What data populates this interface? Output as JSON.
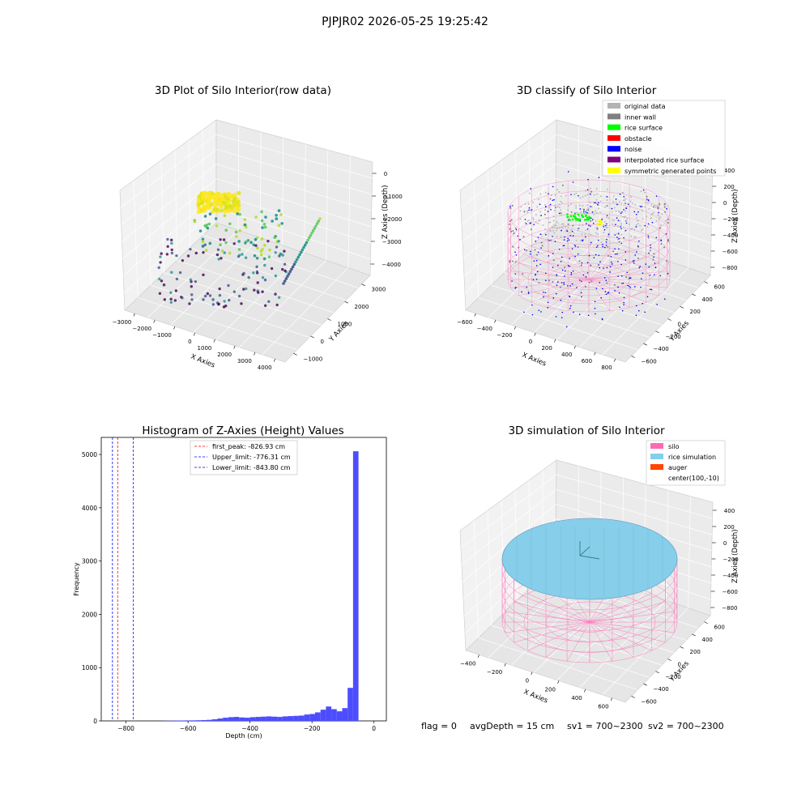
{
  "figure": {
    "suptitle": "PJPJR02 2026-05-25 19:25:42"
  },
  "colors": {
    "original": "#b3b3b3",
    "wall": "#808080",
    "surface": "#00ff00",
    "obstacle": "#ff0000",
    "noise": "#0000ff",
    "interp": "#800080",
    "sym": "#ffff00",
    "silo": "#ff69b4",
    "rice": "#87ceeb",
    "auger": "#ff4500",
    "hist": "#4d4dff"
  },
  "chart_data": [
    {
      "type": "scatter",
      "title": "3D Plot of Silo Interior(row data)",
      "xlabel": "X Axies",
      "ylabel": "Y Axies",
      "zlabel": "Z Axies (Depth)",
      "x_ticks": [
        "−3000",
        "−2000",
        "−1000",
        "0",
        "1000",
        "2000",
        "3000",
        "4000"
      ],
      "y_ticks": [
        "−1000",
        "0",
        "1000",
        "2000",
        "3000"
      ],
      "z_ticks": [
        "−4000",
        "−3000",
        "−2000",
        "−1000",
        "0"
      ],
      "xlim": [
        -3300,
        4300
      ],
      "ylim": [
        -1200,
        3700
      ],
      "zlim": [
        -4600,
        200
      ],
      "colormap": "viridis",
      "grid": true
    },
    {
      "type": "scatter",
      "title": "3D classify of Silo Interior",
      "xlabel": "X Axies",
      "ylabel": "Y Axies",
      "zlabel": "Z Axies (Depth)",
      "x_ticks": [
        "−600",
        "−400",
        "−200",
        "0",
        "200",
        "400",
        "600",
        "800"
      ],
      "y_ticks": [
        "−600",
        "−400",
        "−200",
        "0",
        "200",
        "400",
        "600"
      ],
      "z_ticks": [
        "−800",
        "−600",
        "−400",
        "−200",
        "0",
        "200",
        "400"
      ],
      "legend": [
        "original data",
        "inner wall",
        "rice surface",
        "obstacle",
        "noise",
        "interpolated rice surface",
        "symmetric generated points"
      ],
      "legend_position": "top-right",
      "grid": true
    },
    {
      "type": "bar",
      "title": "Histogram of Z-Axies (Height) Values",
      "xlabel": "Depth (cm)",
      "ylabel": "Frequency",
      "xlim": [
        -880,
        40
      ],
      "ylim": [
        0,
        5320
      ],
      "x_ticks": [
        -800,
        -600,
        -400,
        -200,
        0
      ],
      "x_tick_labels": [
        "−800",
        "−600",
        "−400",
        "−200",
        "0"
      ],
      "y_ticks": [
        0,
        1000,
        2000,
        3000,
        4000,
        5000
      ],
      "y_tick_labels": [
        "0",
        "1000",
        "2000",
        "3000",
        "4000",
        "5000"
      ],
      "bin_width": 17.5,
      "bins_start": -680,
      "counts": [
        4,
        6,
        7,
        8,
        9,
        10,
        12,
        15,
        20,
        30,
        45,
        60,
        70,
        75,
        65,
        60,
        70,
        75,
        80,
        85,
        80,
        75,
        85,
        90,
        95,
        100,
        120,
        130,
        160,
        210,
        270,
        220,
        180,
        240,
        620,
        5060
      ],
      "vlines": [
        {
          "label": "first_peak: -826.93 cm",
          "x": -826.93,
          "color": "#ff0000"
        },
        {
          "label": "Upper_limit: -776.31 cm",
          "x": -776.31,
          "color": "#0000ff"
        },
        {
          "label": "Lower_limit: -843.80 cm",
          "x": -843.8,
          "color": "#0000ff"
        }
      ],
      "legend_position": "top-center"
    },
    {
      "type": "surface",
      "title": "3D simulation of Silo Interior",
      "xlabel": "X Axies",
      "ylabel": "Y Axies",
      "zlabel": "Z Axies (Depth)",
      "x_ticks": [
        "−400",
        "−200",
        "0",
        "200",
        "400",
        "600"
      ],
      "y_ticks": [
        "−600",
        "−400",
        "−200",
        "0",
        "200",
        "400",
        "600"
      ],
      "z_ticks": [
        "−800",
        "−600",
        "−400",
        "−200",
        "0",
        "200",
        "400"
      ],
      "legend": [
        "silo",
        "rice simulation",
        "auger",
        "center(100,-10)"
      ],
      "legend_position": "top-right",
      "grid": true
    }
  ],
  "footer": {
    "flag": "flag = 0",
    "avg_depth": "avgDepth = 15 cm",
    "sv1": "sv1 = 700~2300",
    "sv2": "sv2 = 700~2300"
  }
}
